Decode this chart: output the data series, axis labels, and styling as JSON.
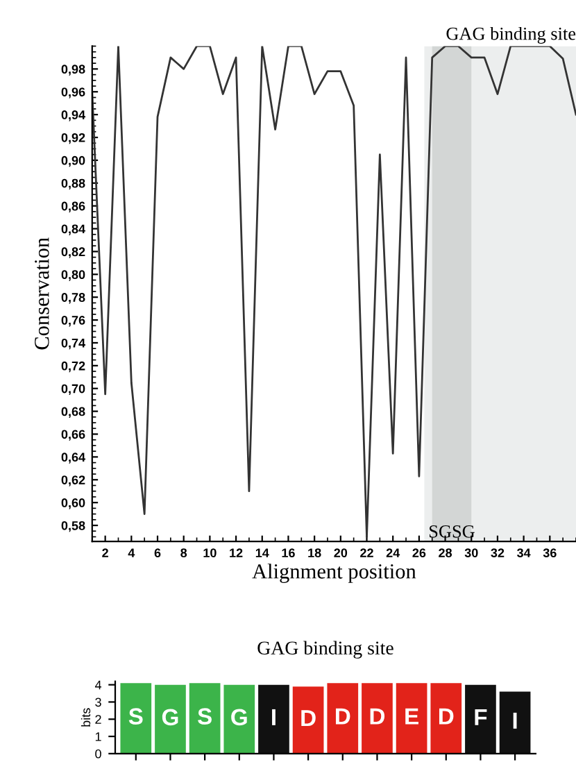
{
  "chart_data": [
    {
      "type": "line",
      "xlabel": "Alignment position",
      "ylabel": "Conservation",
      "x": [
        1,
        2,
        3,
        4,
        5,
        6,
        7,
        8,
        9,
        10,
        11,
        12,
        13,
        14,
        15,
        16,
        17,
        18,
        19,
        20,
        21,
        22,
        23,
        24,
        25,
        26,
        27,
        28,
        29,
        30,
        31,
        32,
        33,
        34,
        35,
        36,
        37,
        38
      ],
      "series": [
        {
          "color": "#333333",
          "values": [
            0.96,
            0.695,
            1.0,
            0.705,
            0.59,
            0.938,
            0.99,
            0.98,
            1.0,
            1.0,
            0.958,
            0.99,
            0.61,
            1.0,
            0.927,
            1.0,
            1.0,
            0.958,
            0.978,
            0.978,
            0.948,
            0.57,
            0.905,
            0.643,
            0.99,
            0.623,
            0.99,
            1.0,
            1.0,
            0.99,
            0.99,
            0.958,
            1.0,
            1.0,
            1.0,
            1.0,
            0.989,
            0.94
          ]
        }
      ],
      "xlim": [
        1,
        38
      ],
      "xticks": [
        2,
        4,
        6,
        8,
        10,
        12,
        14,
        16,
        18,
        20,
        22,
        24,
        26,
        28,
        30,
        32,
        34,
        36
      ],
      "ylim": [
        0.566,
        1.0
      ],
      "yticks": [
        {
          "value": 0.58,
          "label": "0,58"
        },
        {
          "value": 0.6,
          "label": "0,60"
        },
        {
          "value": 0.62,
          "label": "0,62"
        },
        {
          "value": 0.64,
          "label": "0,64"
        },
        {
          "value": 0.66,
          "label": "0,66"
        },
        {
          "value": 0.68,
          "label": "0,68"
        },
        {
          "value": 0.7,
          "label": "0,70"
        },
        {
          "value": 0.72,
          "label": "0,72"
        },
        {
          "value": 0.74,
          "label": "0,74"
        },
        {
          "value": 0.76,
          "label": "0,76"
        },
        {
          "value": 0.78,
          "label": "0,78"
        },
        {
          "value": 0.8,
          "label": "0,80"
        },
        {
          "value": 0.82,
          "label": "0,82"
        },
        {
          "value": 0.84,
          "label": "0,84"
        },
        {
          "value": 0.86,
          "label": "0,86"
        },
        {
          "value": 0.88,
          "label": "0,88"
        },
        {
          "value": 0.9,
          "label": "0,90"
        },
        {
          "value": 0.92,
          "label": "0,92"
        },
        {
          "value": 0.94,
          "label": "0,94"
        },
        {
          "value": 0.96,
          "label": "0,96"
        },
        {
          "value": 0.98,
          "label": "0,98"
        }
      ],
      "bands": [
        {
          "axis": "x",
          "from": 26.4,
          "to": 38,
          "label": "GAG binding site",
          "color": "#eceeee"
        },
        {
          "axis": "x",
          "from": 27,
          "to": 30,
          "label": "SGSG",
          "color": "#d3d6d5"
        }
      ],
      "grid": false,
      "legend": false,
      "marker": "none",
      "line_style": "solid"
    },
    {
      "type": "bar",
      "title": "GAG binding site",
      "ylabel": "bits",
      "categories": [
        null,
        null,
        null,
        null,
        null,
        null,
        null,
        null,
        null,
        null,
        null,
        null
      ],
      "values": [
        4.1,
        4.0,
        4.1,
        4.0,
        4.0,
        3.9,
        4.1,
        4.1,
        4.1,
        4.1,
        4.0,
        3.6
      ],
      "colors": [
        "#3cb44a",
        "#3cb44a",
        "#3cb44a",
        "#3cb44a",
        "#111111",
        "#e2231a",
        "#e2231a",
        "#e2231a",
        "#e2231a",
        "#e2231a",
        "#111111",
        "#111111"
      ],
      "value_labels": [
        "S",
        "G",
        "S",
        "G",
        "I",
        "D",
        "D",
        "D",
        "E",
        "D",
        "F",
        "I"
      ],
      "ylim": [
        0,
        4.2
      ],
      "yticks": [
        0,
        1,
        2,
        3,
        4
      ],
      "tick_labels": "y",
      "grid": false,
      "legend": false
    }
  ]
}
